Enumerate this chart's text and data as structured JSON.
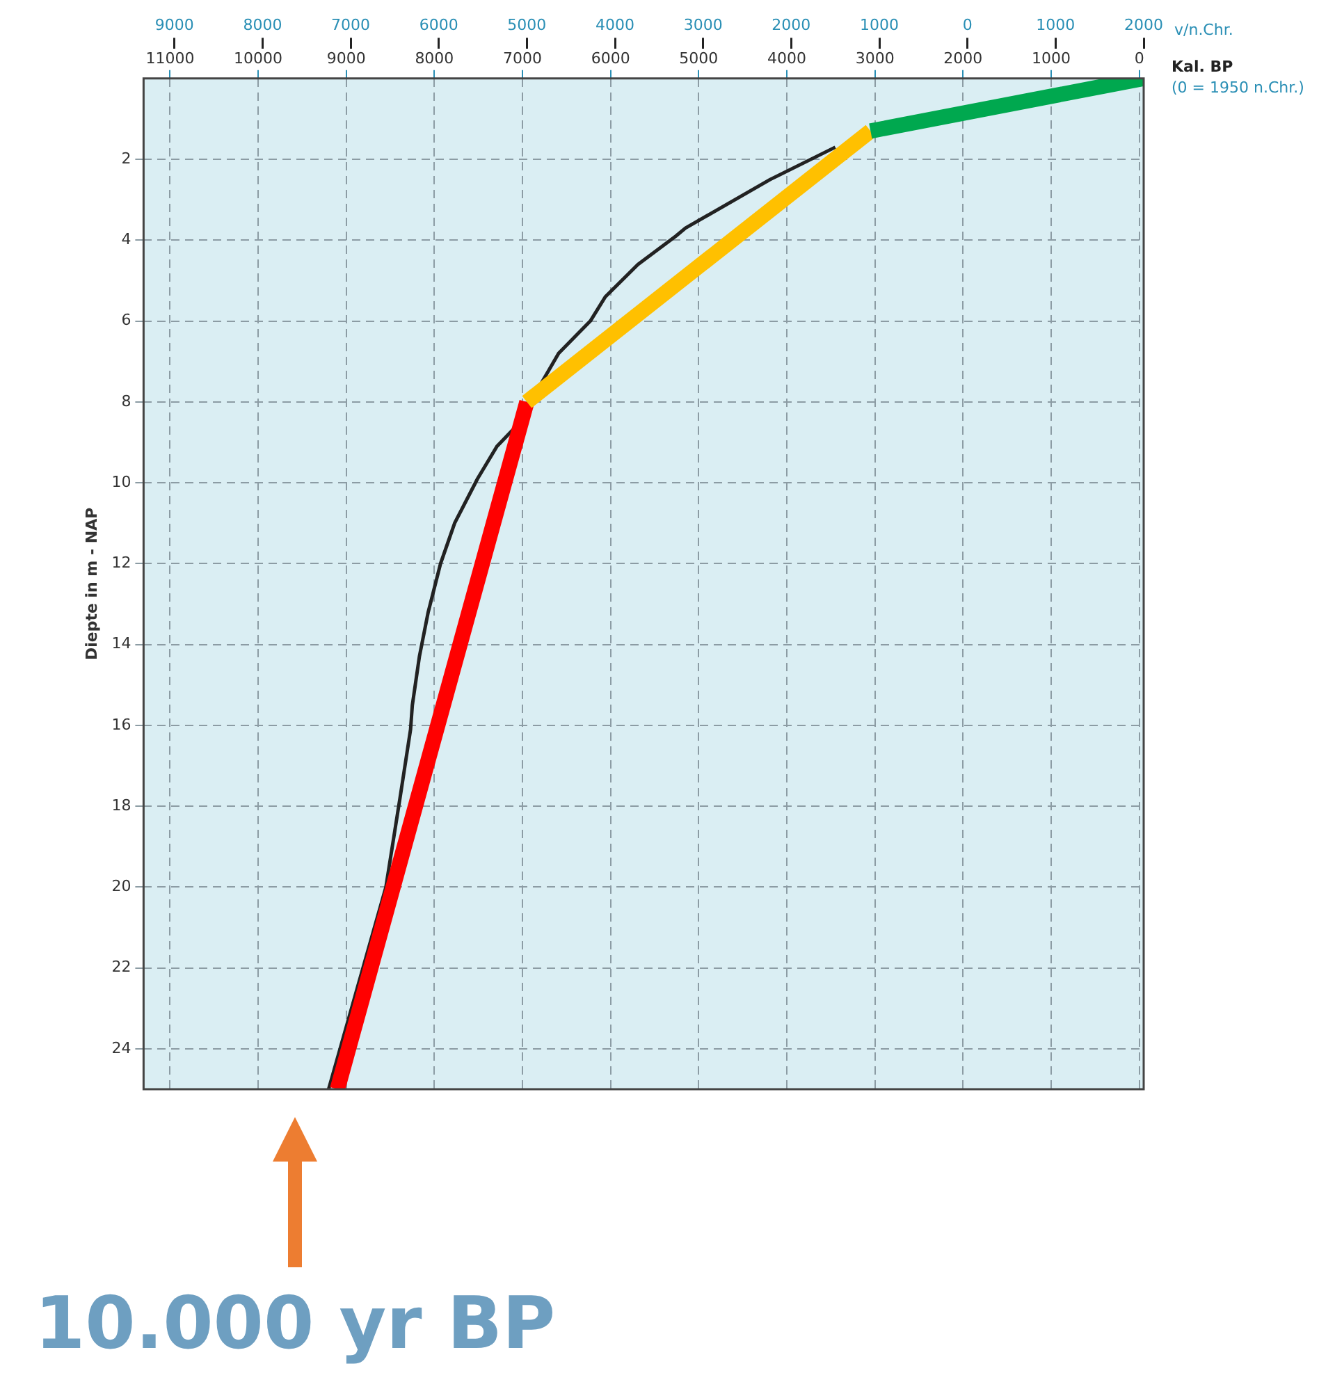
{
  "chart_data": {
    "type": "line",
    "xlabel": "Kal. BP\n(0 = 1950 n.Chr.)",
    "x2label": "v/n.Chr.",
    "ylabel": "Diepte in m - NAP",
    "xlim": [
      11300,
      -50
    ],
    "xticks": [
      11000,
      10000,
      9000,
      8000,
      7000,
      6000,
      5000,
      4000,
      3000,
      2000,
      1000,
      0
    ],
    "x2lim": [
      -9350,
      2000
    ],
    "x2ticks": [
      {
        "value": -9000,
        "label": "9000"
      },
      {
        "value": -8000,
        "label": "8000"
      },
      {
        "value": -7000,
        "label": "7000"
      },
      {
        "value": -6000,
        "label": "6000"
      },
      {
        "value": -5000,
        "label": "5000"
      },
      {
        "value": -4000,
        "label": "4000"
      },
      {
        "value": -3000,
        "label": "3000"
      },
      {
        "value": -2000,
        "label": "2000"
      },
      {
        "value": -1000,
        "label": "1000"
      },
      0,
      1000,
      2000
    ],
    "ylim": [
      25,
      0
    ],
    "yticks": [
      2,
      4,
      6,
      8,
      10,
      12,
      14,
      16,
      18,
      20,
      22,
      24
    ],
    "grid": true,
    "legend": false,
    "marker": "none",
    "series": [
      {
        "color": "#00a84f",
        "x": [
          3050,
          -50
        ],
        "values": [
          1.3,
          0
        ]
      },
      {
        "color": "#ffc000",
        "x": [
          6950,
          3050
        ],
        "values": [
          8,
          1.3
        ]
      },
      {
        "color": "#ff0000",
        "x": [
          9100,
          6950
        ],
        "values": [
          25,
          8
        ]
      },
      {
        "color": "#222222",
        "x": [
          9200,
          8550,
          8470,
          8390,
          8270,
          8250,
          8170,
          8070,
          7930,
          7770,
          7510,
          7290,
          7070,
          6750,
          6590,
          6230,
          6060,
          5690,
          5260,
          5150,
          4190,
          3450
        ],
        "values": [
          25,
          20.0,
          18.9,
          17.8,
          16.1,
          15.5,
          14.3,
          13.2,
          12.0,
          11.0,
          9.9,
          9.1,
          8.6,
          7.4,
          6.8,
          6.0,
          5.4,
          4.6,
          3.9,
          3.7,
          2.5,
          1.7
        ]
      }
    ],
    "annotations": [
      "10.000 yr BP"
    ]
  }
}
